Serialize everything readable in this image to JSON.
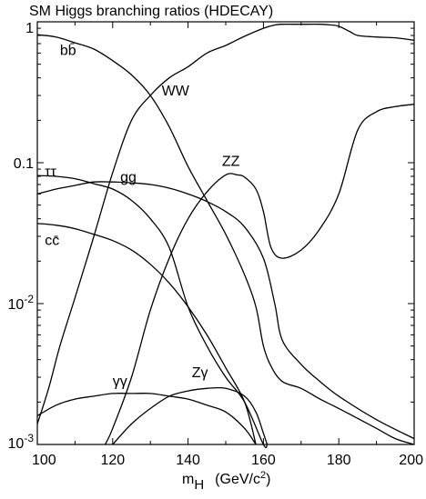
{
  "chart_data": {
    "type": "line",
    "title": "SM Higgs branching ratios (HDECAY)",
    "xlabel": {
      "symbol": "m",
      "subscript": "H",
      "unit_prefix": "(GeV/c",
      "unit_sup": "2",
      "unit_suffix": ")"
    },
    "ylabel": "",
    "xlim": [
      100,
      200
    ],
    "ylim": [
      0.001,
      1
    ],
    "y_scale": "log",
    "x_ticks": [
      100,
      120,
      140,
      160,
      180,
      200
    ],
    "x_tick_labels": [
      "100",
      "120",
      "140",
      "160",
      "180",
      "200"
    ],
    "y_ticks": [
      {
        "value": 1,
        "base": "1",
        "exp": ""
      },
      {
        "value": 0.1,
        "base": "0.1",
        "exp": ""
      },
      {
        "value": 0.01,
        "base": "10",
        "exp": "-2"
      },
      {
        "value": 0.001,
        "base": "10",
        "exp": "-3"
      }
    ],
    "grid": false,
    "legend": "none",
    "series": [
      {
        "name": "bb̄",
        "label_at": [
          106,
          0.58
        ],
        "points": [
          [
            100,
            0.81
          ],
          [
            105,
            0.78
          ],
          [
            110,
            0.71
          ],
          [
            115,
            0.64
          ],
          [
            120,
            0.53
          ],
          [
            125,
            0.42
          ],
          [
            130,
            0.3
          ],
          [
            135,
            0.18
          ],
          [
            140,
            0.094
          ],
          [
            145,
            0.054
          ],
          [
            150,
            0.031
          ],
          [
            155,
            0.016
          ],
          [
            158,
            0.0095
          ],
          [
            160,
            0.005
          ],
          [
            162,
            0.0036
          ],
          [
            165,
            0.0028
          ],
          [
            170,
            0.0025
          ],
          [
            175,
            0.0021
          ],
          [
            180,
            0.0018
          ],
          [
            190,
            0.0013
          ],
          [
            195,
            0.0011
          ],
          [
            200,
            0.001
          ]
        ]
      },
      {
        "name": "WW",
        "label_at": [
          133,
          0.3
        ],
        "points": [
          [
            100,
            0.0014
          ],
          [
            103,
            0.0025
          ],
          [
            106,
            0.005
          ],
          [
            110,
            0.011
          ],
          [
            115,
            0.03
          ],
          [
            120,
            0.085
          ],
          [
            125,
            0.2
          ],
          [
            130,
            0.3
          ],
          [
            135,
            0.4
          ],
          [
            140,
            0.48
          ],
          [
            145,
            0.6
          ],
          [
            150,
            0.68
          ],
          [
            155,
            0.79
          ],
          [
            160,
            0.9
          ],
          [
            163,
            0.95
          ],
          [
            165,
            0.96
          ],
          [
            170,
            0.96
          ],
          [
            175,
            0.96
          ],
          [
            178,
            0.95
          ],
          [
            180,
            0.93
          ],
          [
            183,
            0.85
          ],
          [
            185,
            0.8
          ],
          [
            190,
            0.78
          ],
          [
            195,
            0.77
          ],
          [
            200,
            0.74
          ]
        ]
      },
      {
        "name": "ZZ",
        "label_at": [
          149,
          0.095
        ],
        "points": [
          [
            118,
            0.001
          ],
          [
            120,
            0.0013
          ],
          [
            125,
            0.003
          ],
          [
            130,
            0.009
          ],
          [
            135,
            0.021
          ],
          [
            140,
            0.04
          ],
          [
            145,
            0.062
          ],
          [
            150,
            0.082
          ],
          [
            153,
            0.082
          ],
          [
            155,
            0.079
          ],
          [
            158,
            0.065
          ],
          [
            160,
            0.045
          ],
          [
            162,
            0.025
          ],
          [
            165,
            0.021
          ],
          [
            170,
            0.024
          ],
          [
            175,
            0.034
          ],
          [
            180,
            0.06
          ],
          [
            185,
            0.17
          ],
          [
            190,
            0.23
          ],
          [
            195,
            0.25
          ],
          [
            200,
            0.26
          ]
        ]
      },
      {
        "name": "ττ",
        "label_at": [
          102,
          0.08
        ],
        "points": [
          [
            100,
            0.081
          ],
          [
            105,
            0.08
          ],
          [
            110,
            0.077
          ],
          [
            115,
            0.071
          ],
          [
            120,
            0.065
          ],
          [
            125,
            0.054
          ],
          [
            130,
            0.04
          ],
          [
            135,
            0.025
          ],
          [
            140,
            0.0095
          ],
          [
            145,
            0.005
          ],
          [
            150,
            0.003
          ],
          [
            155,
            0.002
          ],
          [
            160,
            0.001
          ],
          [
            161,
            0.001
          ]
        ]
      },
      {
        "name": "gg",
        "label_at": [
          122,
          0.073
        ],
        "points": [
          [
            100,
            0.06
          ],
          [
            105,
            0.065
          ],
          [
            110,
            0.069
          ],
          [
            115,
            0.073
          ],
          [
            120,
            0.073
          ],
          [
            125,
            0.072
          ],
          [
            130,
            0.07
          ],
          [
            135,
            0.066
          ],
          [
            140,
            0.06
          ],
          [
            145,
            0.053
          ],
          [
            150,
            0.045
          ],
          [
            155,
            0.035
          ],
          [
            160,
            0.021
          ],
          [
            163,
            0.01
          ],
          [
            165,
            0.0055
          ],
          [
            170,
            0.0037
          ],
          [
            175,
            0.0028
          ],
          [
            180,
            0.0022
          ],
          [
            190,
            0.0015
          ],
          [
            200,
            0.0011
          ]
        ]
      },
      {
        "name": "cc̄",
        "label_at": [
          102,
          0.026
        ],
        "points": [
          [
            100,
            0.037
          ],
          [
            105,
            0.036
          ],
          [
            110,
            0.034
          ],
          [
            115,
            0.031
          ],
          [
            120,
            0.028
          ],
          [
            125,
            0.024
          ],
          [
            130,
            0.019
          ],
          [
            135,
            0.014
          ],
          [
            140,
            0.0095
          ],
          [
            145,
            0.006
          ],
          [
            150,
            0.0035
          ],
          [
            155,
            0.002
          ],
          [
            158,
            0.001
          ]
        ]
      },
      {
        "name": "γγ",
        "label_at": [
          120,
          0.0026
        ],
        "points": [
          [
            100,
            0.0016
          ],
          [
            105,
            0.0019
          ],
          [
            110,
            0.0021
          ],
          [
            115,
            0.0022
          ],
          [
            120,
            0.0023
          ],
          [
            125,
            0.0023
          ],
          [
            130,
            0.0023
          ],
          [
            135,
            0.0022
          ],
          [
            140,
            0.0021
          ],
          [
            145,
            0.0019
          ],
          [
            150,
            0.0017
          ],
          [
            155,
            0.0013
          ],
          [
            158,
            0.001
          ]
        ]
      },
      {
        "name": "Zγ",
        "label_at": [
          141,
          0.003
        ],
        "points": [
          [
            120,
            0.001
          ],
          [
            125,
            0.0014
          ],
          [
            130,
            0.0018
          ],
          [
            135,
            0.0022
          ],
          [
            140,
            0.0024
          ],
          [
            145,
            0.0025
          ],
          [
            150,
            0.0025
          ],
          [
            155,
            0.0022
          ],
          [
            158,
            0.0017
          ],
          [
            160,
            0.0012
          ],
          [
            161,
            0.001
          ]
        ]
      }
    ]
  }
}
